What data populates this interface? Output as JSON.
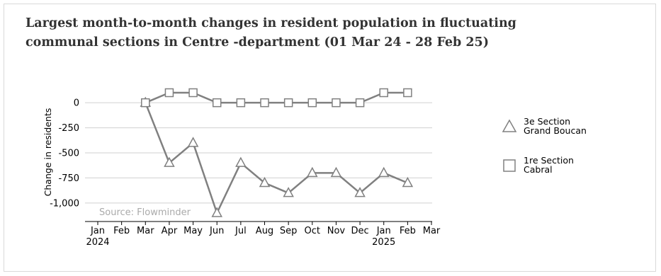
{
  "chart_data": {
    "type": "line",
    "title": [
      "Largest month-to-month changes in resident population in fluctuating",
      "communal sections in Centre -department (01 Mar 24 - 28 Feb 25)"
    ],
    "ylabel": "Change in residents",
    "ylim": [
      -1100,
      100
    ],
    "y_ticks": [
      0,
      -250,
      -500,
      -750,
      -1000
    ],
    "y_tick_labels": [
      "0",
      "-250",
      "-500",
      "-750",
      "-1,000"
    ],
    "x_ticks": [
      "2024-01",
      "2024-02",
      "2024-03",
      "2024-04",
      "2024-05",
      "2024-06",
      "2024-07",
      "2024-08",
      "2024-09",
      "2024-10",
      "2024-11",
      "2024-12",
      "2025-01",
      "2025-02",
      "2025-03"
    ],
    "x_tick_labels": [
      "Jan",
      "Feb",
      "Mar",
      "Apr",
      "May",
      "Jun",
      "Jul",
      "Aug",
      "Sep",
      "Oct",
      "Nov",
      "Dec",
      "Jan",
      "Feb",
      "Mar"
    ],
    "x_year_labels": [
      {
        "at": "2024-01",
        "label": "2024"
      },
      {
        "at": "2025-01",
        "label": "2025"
      }
    ],
    "x": [
      "2024-03",
      "2024-04",
      "2024-05",
      "2024-06",
      "2024-07",
      "2024-08",
      "2024-09",
      "2024-10",
      "2024-11",
      "2024-12",
      "2025-01",
      "2025-02"
    ],
    "series": [
      {
        "name": [
          "3e Section",
          "Grand Boucan"
        ],
        "marker": "triangle",
        "values": [
          0,
          -600,
          -400,
          -1100,
          -600,
          -800,
          -900,
          -700,
          -700,
          -900,
          -700,
          -800
        ]
      },
      {
        "name": [
          "1re Section",
          "Cabral"
        ],
        "marker": "square",
        "values": [
          0,
          100,
          100,
          0,
          0,
          0,
          0,
          0,
          0,
          0,
          100,
          100
        ]
      }
    ],
    "grid": "horizontal",
    "legend_position": "right",
    "source": "Source: Flowminder",
    "colors": {
      "series": "#808080",
      "grid": "#d0d0d0",
      "axis": "#000000",
      "source": "#aaaaaa"
    }
  }
}
